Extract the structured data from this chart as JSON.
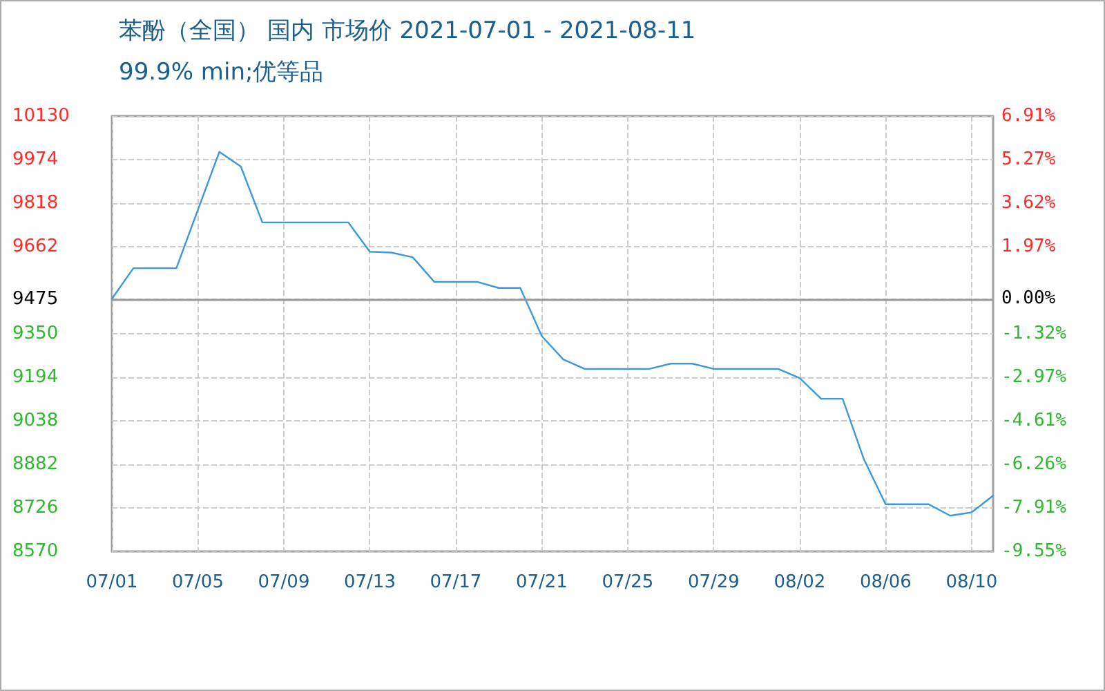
{
  "chart_data": {
    "type": "line",
    "title": "苯酚（全国） 国内 市场价 2021-07-01 - 2021-08-11",
    "subtitle": "99.9% min;优等品",
    "x": [
      "2021-07-01",
      "2021-07-02",
      "2021-07-04",
      "2021-07-06",
      "2021-07-07",
      "2021-07-08",
      "2021-07-12",
      "2021-07-13",
      "2021-07-14",
      "2021-07-15",
      "2021-07-16",
      "2021-07-18",
      "2021-07-19",
      "2021-07-20",
      "2021-07-21",
      "2021-07-22",
      "2021-07-23",
      "2021-07-26",
      "2021-07-27",
      "2021-07-28",
      "2021-07-29",
      "2021-08-01",
      "2021-08-02",
      "2021-08-03",
      "2021-08-04",
      "2021-08-05",
      "2021-08-06",
      "2021-08-08",
      "2021-08-09",
      "2021-08-10",
      "2021-08-11"
    ],
    "series": [
      {
        "color": "#3a9ad9",
        "values": [
          9475,
          9585,
          9585,
          10002,
          9949,
          9749,
          9749,
          9644,
          9641,
          9624,
          9536,
          9536,
          9514,
          9514,
          9342,
          9258,
          9224,
          9224,
          9243,
          9243,
          9224,
          9224,
          9191,
          9117,
          9117,
          8898,
          8739,
          8739,
          8698,
          8710,
          8770
        ]
      }
    ],
    "xlim": [
      "2021-07-01",
      "2021-08-11"
    ],
    "xticks": [
      {
        "value": "2021-07-01",
        "label": "07/01"
      },
      {
        "value": "2021-07-05",
        "label": "07/05"
      },
      {
        "value": "2021-07-09",
        "label": "07/09"
      },
      {
        "value": "2021-07-13",
        "label": "07/13"
      },
      {
        "value": "2021-07-17",
        "label": "07/17"
      },
      {
        "value": "2021-07-21",
        "label": "07/21"
      },
      {
        "value": "2021-07-25",
        "label": "07/25"
      },
      {
        "value": "2021-07-29",
        "label": "07/29"
      },
      {
        "value": "2021-08-02",
        "label": "08/02"
      },
      {
        "value": "2021-08-06",
        "label": "08/06"
      },
      {
        "value": "2021-08-10",
        "label": "08/10"
      }
    ],
    "ylim": [
      8570,
      10130
    ],
    "yticks": [
      8570,
      8726,
      8882,
      9038,
      9194,
      9350,
      9475,
      9662,
      9818,
      9974,
      10130
    ],
    "y2lim": [
      -9.55,
      6.91
    ],
    "y2ticks": [
      {
        "value": -9.55,
        "label": "-9.55%"
      },
      {
        "value": -7.91,
        "label": "-7.91%"
      },
      {
        "value": -6.26,
        "label": "-6.26%"
      },
      {
        "value": -4.61,
        "label": "-4.61%"
      },
      {
        "value": -2.97,
        "label": "-2.97%"
      },
      {
        "value": -1.32,
        "label": "-1.32%"
      },
      {
        "value": 0,
        "label": "0.00%"
      },
      {
        "value": 1.97,
        "label": "1.97%"
      },
      {
        "value": 3.62,
        "label": "3.62%"
      },
      {
        "value": 5.27,
        "label": "5.27%"
      },
      {
        "value": 6.91,
        "label": "6.91%"
      }
    ],
    "ref_lines": [
      {
        "axis": "y",
        "value": 9475,
        "label": null,
        "color": "#999999"
      }
    ],
    "grid": true,
    "marker": "none",
    "line_style": "solid"
  }
}
